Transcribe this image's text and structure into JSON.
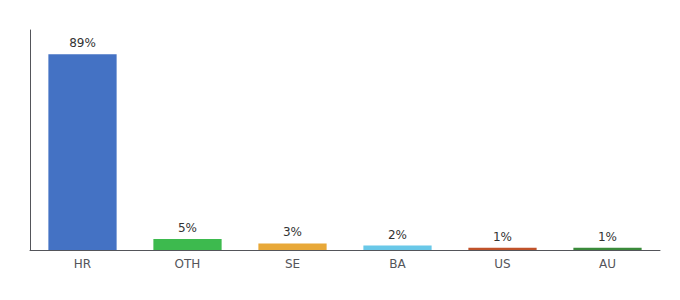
{
  "chart_data": {
    "type": "bar",
    "categories": [
      "HR",
      "OTH",
      "SE",
      "BA",
      "US",
      "AU"
    ],
    "values": [
      89,
      5,
      3,
      2,
      1,
      1
    ],
    "value_labels": [
      "89%",
      "5%",
      "3%",
      "2%",
      "1%",
      "1%"
    ],
    "colors": [
      "#4472c4",
      "#3dba4e",
      "#e8a838",
      "#69c8e8",
      "#c0522a",
      "#3a8a3a"
    ],
    "ylim": [
      0,
      100
    ],
    "data_labels": true,
    "tick_labels": "x",
    "grid": false
  }
}
